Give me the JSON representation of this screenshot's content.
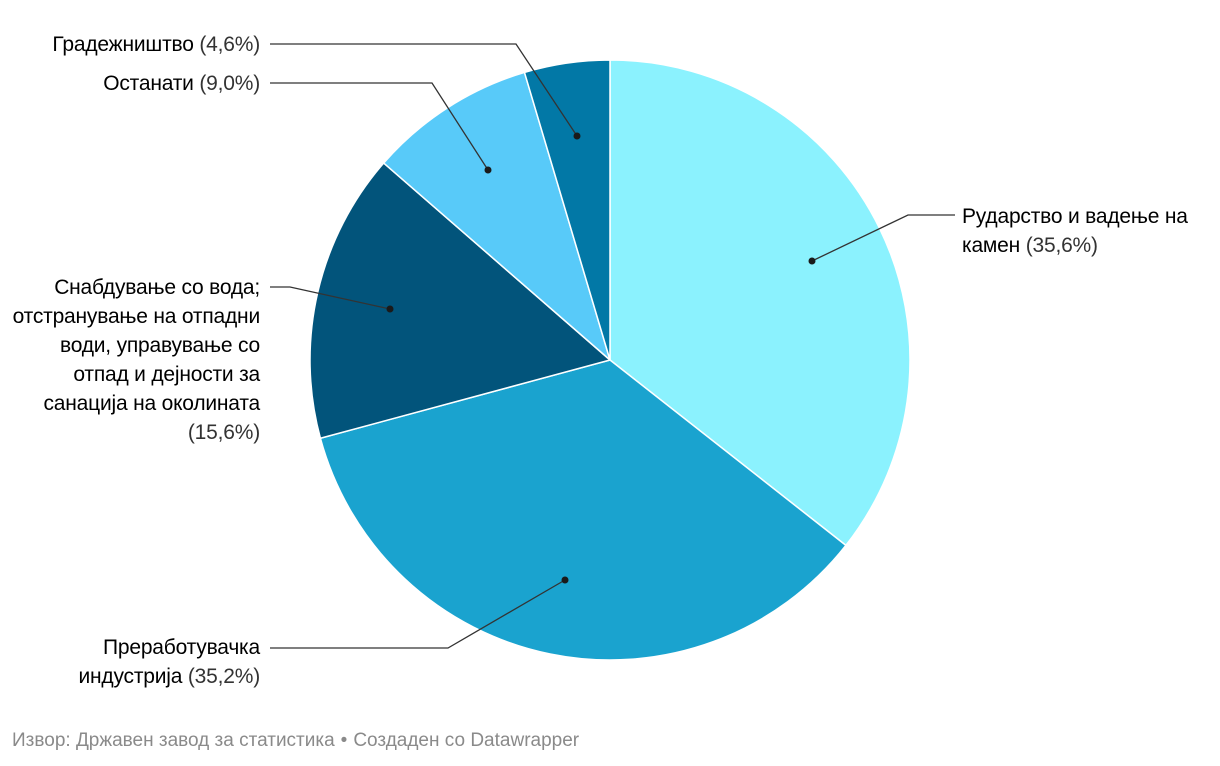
{
  "chart_data": {
    "type": "pie",
    "slices": [
      {
        "label": "Рударство и вадење на камен",
        "value": 35.6,
        "display": "(35,6%)",
        "color": "#8bf2fe"
      },
      {
        "label": "Преработувачка индустрија",
        "value": 35.2,
        "display": "(35,2%)",
        "color": "#1aa3cf"
      },
      {
        "label": "Снабдување со вода; отстранување на отпадни води, управување со отпад и дејности за санација на околината",
        "value": 15.6,
        "display": "(15,6%)",
        "color": "#02547b"
      },
      {
        "label": "Останати",
        "value": 9.0,
        "display": "(9,0%)",
        "color": "#58caf9"
      },
      {
        "label": "Градежништво",
        "value": 4.6,
        "display": "(4,6%)",
        "color": "#0278a6"
      }
    ]
  },
  "footer": {
    "source": "Извор: Државен завод за статистика",
    "separator": "•",
    "credit": "Создаден со Datawrapper"
  }
}
